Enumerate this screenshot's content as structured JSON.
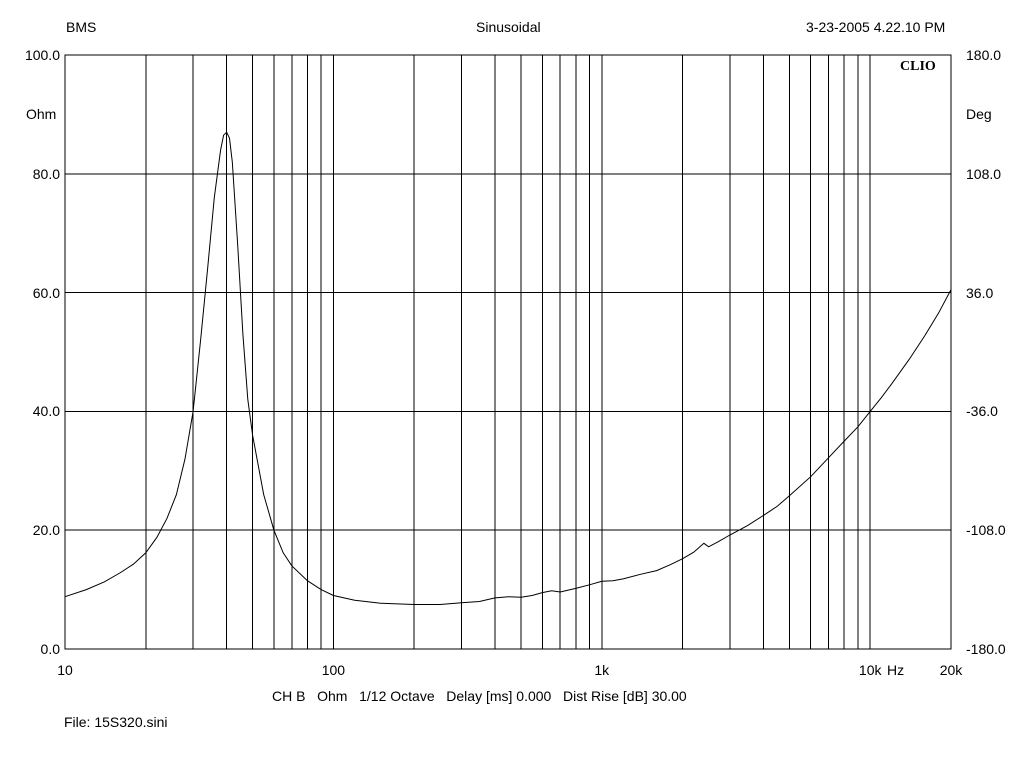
{
  "header": {
    "left": "BMS",
    "center": "Sinusoidal",
    "right": "3-23-2005 4.22.10 PM"
  },
  "brand": "CLIO",
  "footer": {
    "info": "CH B   Ohm   1/12 Octave   Delay [ms] 0.000   Dist Rise [dB] 30.00",
    "file": "File: 15S320.sini"
  },
  "chart_data": {
    "type": "line",
    "xscale": "log",
    "xlim": [
      10,
      20000
    ],
    "ylim": [
      0,
      100
    ],
    "y2lim": [
      -180,
      180
    ],
    "ylabel": "Ohm",
    "y2label": "Deg",
    "xunit": "Hz",
    "grid": true,
    "x_tick_labels": [
      {
        "value": 10,
        "label": "10"
      },
      {
        "value": 100,
        "label": "100"
      },
      {
        "value": 1000,
        "label": "1k"
      },
      {
        "value": 10000,
        "label": "10k"
      },
      {
        "value": 20000,
        "label": "20k"
      }
    ],
    "y_tick_labels": [
      "0.0",
      "20.0",
      "40.0",
      "60.0",
      "80.0",
      "100.0"
    ],
    "y2_tick_labels": [
      "-180.0",
      "-108.0",
      "-36.0",
      "36.0",
      "108.0",
      "180.0"
    ],
    "series": [
      {
        "x": [
          10,
          12,
          14,
          16,
          18,
          20,
          22,
          24,
          26,
          28,
          30,
          32,
          34,
          36,
          38,
          39,
          40,
          41,
          42,
          44,
          46,
          48,
          50,
          55,
          60,
          65,
          70,
          80,
          90,
          100,
          120,
          150,
          200,
          250,
          300,
          350,
          400,
          450,
          500,
          550,
          600,
          650,
          700,
          800,
          900,
          1000,
          1100,
          1200,
          1400,
          1600,
          1800,
          2000,
          2200,
          2400,
          2500,
          2700,
          3000,
          3500,
          4000,
          4500,
          5000,
          6000,
          7000,
          8000,
          9000,
          10000,
          11000,
          12000,
          14000,
          16000,
          18000,
          20000
        ],
        "y": [
          8.8,
          10.0,
          11.3,
          12.8,
          14.3,
          16.2,
          18.8,
          22.0,
          26.0,
          32.0,
          40.0,
          52.0,
          64.0,
          76.0,
          84.0,
          86.5,
          87.0,
          86.0,
          82.0,
          68.0,
          53.0,
          42.0,
          36.0,
          26.0,
          20.0,
          16.2,
          14.0,
          11.5,
          10.0,
          9.0,
          8.2,
          7.7,
          7.5,
          7.5,
          7.8,
          8.0,
          8.6,
          8.8,
          8.7,
          9.0,
          9.5,
          9.8,
          9.6,
          10.2,
          10.8,
          11.4,
          11.5,
          11.8,
          12.6,
          13.2,
          14.2,
          15.2,
          16.3,
          17.8,
          17.2,
          18.0,
          19.2,
          20.8,
          22.5,
          24.0,
          25.8,
          29.0,
          32.2,
          35.0,
          37.4,
          40.0,
          42.3,
          44.6,
          48.8,
          52.8,
          56.6,
          60.5
        ]
      }
    ]
  }
}
